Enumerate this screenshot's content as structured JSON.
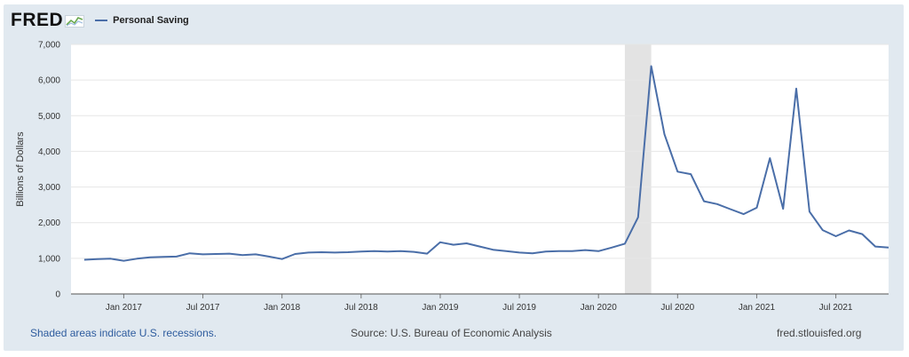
{
  "header": {
    "logo_text": "FRED",
    "logo_icon": "fred-graph-icon"
  },
  "colors": {
    "series": "#4a6ea8",
    "recession": "#e3e3e3",
    "frame": "#e1e9f0",
    "grid": "#e6e6e6",
    "axis_text": "#333333"
  },
  "footer": {
    "recession_note": "Shaded areas indicate U.S. recessions.",
    "source": "Source: U.S. Bureau of Economic Analysis",
    "site": "fred.stlouisfed.org"
  },
  "chart_data": {
    "type": "line",
    "title": "",
    "xlabel": "",
    "ylabel": "Billions of Dollars",
    "ylim": [
      0,
      7000
    ],
    "y_ticks": [
      0,
      1000,
      2000,
      3000,
      4000,
      5000,
      6000,
      7000
    ],
    "y_tick_labels": [
      "0",
      "1,000",
      "2,000",
      "3,000",
      "4,000",
      "5,000",
      "6,000",
      "7,000"
    ],
    "x_start": "2016-09",
    "x_end": "2021-10",
    "x_ticks": [
      {
        "label": "Jan 2017",
        "month": 4
      },
      {
        "label": "Jul 2017",
        "month": 10
      },
      {
        "label": "Jan 2018",
        "month": 16
      },
      {
        "label": "Jul 2018",
        "month": 22
      },
      {
        "label": "Jan 2019",
        "month": 28
      },
      {
        "label": "Jul 2019",
        "month": 34
      },
      {
        "label": "Jan 2020",
        "month": 40
      },
      {
        "label": "Jul 2020",
        "month": 46
      },
      {
        "label": "Jan 2021",
        "month": 52
      },
      {
        "label": "Jul 2021",
        "month": 58
      }
    ],
    "recessions": [
      {
        "start_month": 42,
        "end_month": 44,
        "label": "2020 recession"
      }
    ],
    "legend_position": "top-left",
    "series": [
      {
        "name": "Personal Saving",
        "x_months": [
          1,
          2,
          3,
          4,
          5,
          6,
          7,
          8,
          9,
          10,
          11,
          12,
          13,
          14,
          15,
          16,
          17,
          18,
          19,
          20,
          21,
          22,
          23,
          24,
          25,
          26,
          27,
          28,
          29,
          30,
          31,
          32,
          33,
          34,
          35,
          36,
          37,
          38,
          39,
          40,
          41,
          42,
          43,
          44,
          45,
          46,
          47,
          48,
          49,
          50,
          51,
          52,
          53,
          54,
          55,
          56,
          57,
          58,
          59,
          60,
          61,
          62
        ],
        "values": [
          960,
          980,
          990,
          930,
          990,
          1030,
          1040,
          1050,
          1140,
          1110,
          1120,
          1130,
          1090,
          1110,
          1050,
          980,
          1120,
          1160,
          1170,
          1160,
          1170,
          1190,
          1200,
          1190,
          1200,
          1180,
          1130,
          1450,
          1380,
          1420,
          1330,
          1240,
          1200,
          1160,
          1140,
          1190,
          1200,
          1200,
          1230,
          1200,
          1300,
          1410,
          2150,
          6390,
          4480,
          3430,
          3360,
          2600,
          2520,
          2380,
          2240,
          2420,
          3810,
          2390,
          5760,
          2310,
          1790,
          1620,
          1780,
          1680,
          1330,
          1300
        ]
      }
    ]
  }
}
